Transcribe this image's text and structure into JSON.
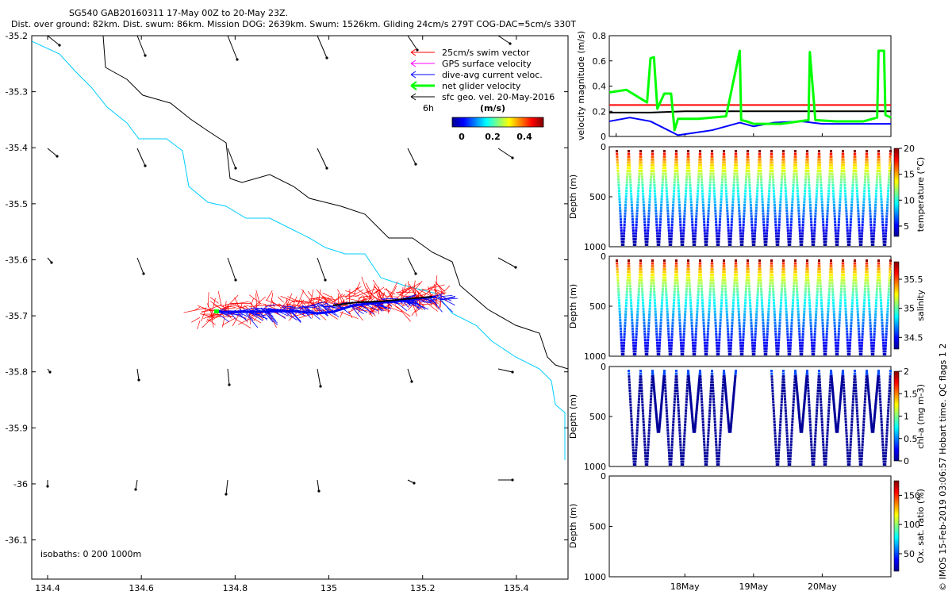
{
  "header": {
    "line1": "SG540 GAB20160311 17-May 00Z to 20-May 23Z.",
    "line2": "Dist. over ground: 82km. Dist. swum: 86km. Mission DOG: 2639km. Swum: 1526km. Gliding 24cm/s 279T COG-DAC=5cm/s 330T"
  },
  "map": {
    "xticks": [
      "134.4",
      "134.6",
      "134.8",
      "135",
      "135.2",
      "135.4"
    ],
    "yticks": [
      "-35.2",
      "-35.3",
      "-35.4",
      "-35.5",
      "-35.6",
      "-35.7",
      "-35.8",
      "-35.9",
      "-36",
      "-36.1"
    ],
    "legend": [
      {
        "label": "25cm/s swim vector",
        "color": "#ff0000"
      },
      {
        "label": "GPS surface velocity",
        "color": "#ff00ff"
      },
      {
        "label": "dive-avg current veloc.",
        "color": "#0000ff"
      },
      {
        "label": "net glider velocity",
        "color": "#00ff00"
      },
      {
        "label": "sfc geo. vel. 20-May-2016",
        "color": "#000000"
      }
    ],
    "scale_label": "6h",
    "colorbar_units": "(m/s)",
    "colorbar_ticks": [
      "0",
      "0.2",
      "0.4"
    ],
    "isobath_label": "isobaths: 0   200  1000m"
  },
  "chart_data": [
    {
      "type": "line",
      "id": "velocity_magnitude",
      "ylabel": "velocity magnitude (m/s)",
      "ylim": [
        0,
        0.8
      ],
      "yticks": [
        "0",
        "0.2",
        "0.4",
        "0.6",
        "0.8"
      ],
      "xlim": [
        16.9,
        21.0
      ],
      "series": [
        {
          "name": "red",
          "color": "#ff0000",
          "x": [
            16.9,
            21.0
          ],
          "y": [
            0.25,
            0.25
          ]
        },
        {
          "name": "black",
          "color": "#000000",
          "x": [
            16.9,
            17.5,
            18.0,
            19.0,
            20.0,
            21.0
          ],
          "y": [
            0.19,
            0.19,
            0.2,
            0.2,
            0.2,
            0.2
          ]
        },
        {
          "name": "blue",
          "color": "#0000ff",
          "x": [
            16.9,
            17.2,
            17.5,
            17.9,
            18.4,
            18.8,
            19.0,
            19.3,
            19.7,
            20.0,
            20.5,
            21.0
          ],
          "y": [
            0.12,
            0.15,
            0.12,
            0.01,
            0.05,
            0.11,
            0.08,
            0.11,
            0.12,
            0.1,
            0.1,
            0.1
          ]
        },
        {
          "name": "green",
          "color": "#00ff00",
          "x": [
            16.9,
            17.15,
            17.45,
            17.5,
            17.55,
            17.6,
            17.7,
            17.8,
            17.85,
            17.9,
            18.2,
            18.6,
            18.8,
            18.82,
            18.9,
            19.0,
            19.4,
            19.8,
            19.82,
            19.9,
            20.2,
            20.6,
            20.8,
            20.82,
            20.9,
            20.92,
            21.0
          ],
          "y": [
            0.35,
            0.37,
            0.27,
            0.62,
            0.63,
            0.22,
            0.34,
            0.34,
            0.05,
            0.14,
            0.14,
            0.16,
            0.68,
            0.13,
            0.12,
            0.1,
            0.1,
            0.13,
            0.67,
            0.13,
            0.12,
            0.12,
            0.15,
            0.68,
            0.68,
            0.17,
            0.15
          ]
        }
      ]
    },
    {
      "type": "scatter",
      "id": "temperature",
      "ylabel": "Depth (m)",
      "ylim": [
        1000,
        0
      ],
      "yticks": [
        "0",
        "500",
        "1000"
      ],
      "colorbar_label": "temperature (°C)",
      "colorbar_range": [
        3,
        20
      ],
      "colorbar_ticks": [
        "20",
        "15",
        "10",
        "5"
      ],
      "profiles": 23,
      "surface_value": 20,
      "deep_value": 3.5
    },
    {
      "type": "scatter",
      "id": "salinity",
      "ylabel": "Depth (m)",
      "ylim": [
        1000,
        0
      ],
      "yticks": [
        "0",
        "500",
        "1000"
      ],
      "colorbar_label": "salinity",
      "colorbar_range": [
        34.3,
        35.8
      ],
      "colorbar_ticks": [
        "35.5",
        "35",
        "34.5"
      ],
      "profiles": 23,
      "surface_value": 35.8,
      "deep_value": 34.4
    },
    {
      "type": "scatter",
      "id": "chlorophyll",
      "ylabel": "Depth (m)",
      "ylim": [
        1000,
        0
      ],
      "yticks": [
        "0",
        "500",
        "1000"
      ],
      "colorbar_label": "chl-a (mg m-3)",
      "colorbar_range": [
        0,
        2
      ],
      "colorbar_ticks": [
        "2",
        "1.5",
        "1",
        "0.5",
        "0"
      ],
      "gap_days": [
        18.9,
        19.6
      ],
      "surface_value": 0.4,
      "deep_value": 0.05
    },
    {
      "type": "scatter",
      "id": "oxygen",
      "ylabel": "Depth (m)",
      "ylim": [
        1000,
        0
      ],
      "yticks": [
        "0",
        "500",
        "1000"
      ],
      "colorbar_label": "Ox. sat. ratio (%)",
      "colorbar_range": [
        20,
        175
      ],
      "colorbar_ticks": [
        "150",
        "100",
        "50"
      ],
      "xticks": [
        "18May",
        "19May",
        "20May"
      ]
    }
  ],
  "footer": {
    "qc_note": "© IMOS 15-Feb-2019 03:06:57 Hobart time. QC flags 1  2"
  }
}
